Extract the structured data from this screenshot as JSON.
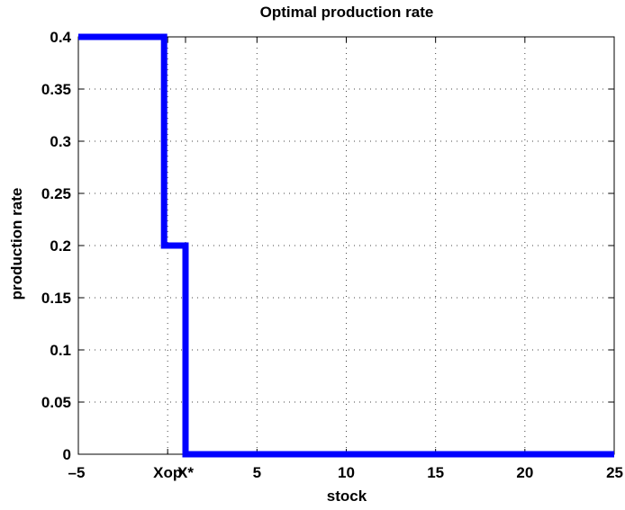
{
  "chart_data": {
    "type": "line",
    "title": "Optimal production rate",
    "xlabel": "stock",
    "ylabel": "production rate",
    "xlim": [
      -5,
      25
    ],
    "ylim": [
      0,
      0.4
    ],
    "grid": true,
    "x_ticks": [
      {
        "value": -5,
        "label": "–5"
      },
      {
        "value": 0,
        "label": "Xop"
      },
      {
        "value": 1,
        "label": "X*"
      },
      {
        "value": 5,
        "label": "5"
      },
      {
        "value": 10,
        "label": "10"
      },
      {
        "value": 15,
        "label": "15"
      },
      {
        "value": 20,
        "label": "20"
      },
      {
        "value": 25,
        "label": "25"
      }
    ],
    "y_ticks": [
      {
        "value": 0,
        "label": "0"
      },
      {
        "value": 0.05,
        "label": "0.05"
      },
      {
        "value": 0.1,
        "label": "0.1"
      },
      {
        "value": 0.15,
        "label": "0.15"
      },
      {
        "value": 0.2,
        "label": "0.2"
      },
      {
        "value": 0.25,
        "label": "0.25"
      },
      {
        "value": 0.3,
        "label": "0.3"
      },
      {
        "value": 0.35,
        "label": "0.35"
      },
      {
        "value": 0.4,
        "label": "0.4"
      }
    ],
    "series": [
      {
        "color": "#0000ff",
        "x": [
          -5,
          -0.2,
          -0.2,
          1,
          1,
          25
        ],
        "y": [
          0.4,
          0.4,
          0.2,
          0.2,
          0,
          0
        ]
      }
    ]
  }
}
